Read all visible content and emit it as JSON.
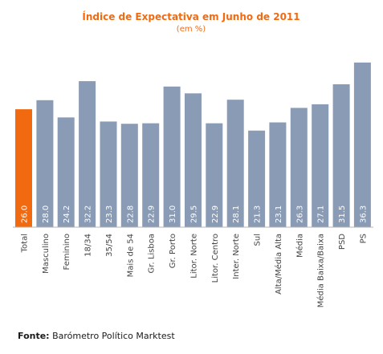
{
  "chart_data": {
    "type": "bar",
    "title": "Índice de Expectativa em Junho de 2011",
    "subtitle": "(em %)",
    "categories": [
      "Total",
      "Masculino",
      "Feminino",
      "18/34",
      "35/54",
      "Mais de 54",
      "Gr. Lisboa",
      "Gr. Porto",
      "Litor. Norte",
      "Litor. Centro",
      "Inter. Norte",
      "Sul",
      "Alta/Média Alta",
      "Média",
      "Média Baixa/Baixa",
      "PSD",
      "PS"
    ],
    "values": [
      26.0,
      28.0,
      24.2,
      32.2,
      23.3,
      22.8,
      22.9,
      31.0,
      29.5,
      22.9,
      28.1,
      21.3,
      23.1,
      26.3,
      27.1,
      31.5,
      36.3
    ],
    "value_labels": [
      "26.0",
      "28.0",
      "24.2",
      "32.2",
      "23.3",
      "22.8",
      "22.9",
      "31.0",
      "29.5",
      "22.9",
      "28.1",
      "21.3",
      "23.1",
      "26.3",
      "27.1",
      "31.5",
      "36.3"
    ],
    "highlight_index": 0,
    "colors": {
      "highlight": "#f26a10",
      "bar": "#8a9bb5",
      "title": "#f26a10",
      "axis": "#b5b5b5",
      "label": "#444444",
      "value_label": "#ffffff"
    },
    "grid": false,
    "legend": "none"
  },
  "footer": {
    "label": "Fonte:",
    "text": "Barómetro Político Marktest"
  }
}
